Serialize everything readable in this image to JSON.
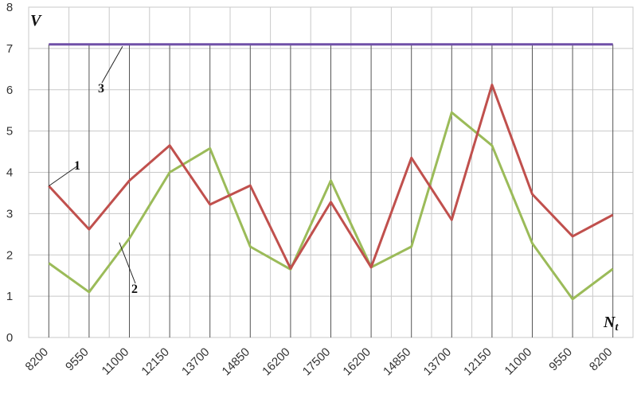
{
  "chart_data": {
    "type": "line",
    "title": "",
    "ylabel": "V",
    "xlabel": {
      "main": "N",
      "sub": "t"
    },
    "ylim": [
      0,
      8
    ],
    "yticks": [
      "0",
      "1",
      "2",
      "3",
      "4",
      "5",
      "6",
      "7",
      "8"
    ],
    "categories": [
      "8200",
      "9550",
      "11000",
      "12150",
      "13700",
      "14850",
      "16200",
      "17500",
      "16200",
      "14850",
      "13700",
      "12150",
      "11000",
      "9550",
      "8200"
    ],
    "grid": true,
    "series": [
      {
        "label": "1",
        "color": "#c0504d",
        "values": [
          3.67,
          2.62,
          3.8,
          4.65,
          3.22,
          3.68,
          1.67,
          3.28,
          1.7,
          4.35,
          2.85,
          6.12,
          3.47,
          2.45,
          2.97
        ]
      },
      {
        "label": "2",
        "color": "#9bbb59",
        "values": [
          1.8,
          1.1,
          2.4,
          4.0,
          4.58,
          2.2,
          1.65,
          3.8,
          1.7,
          2.2,
          5.45,
          4.65,
          2.28,
          0.93,
          1.66
        ]
      },
      {
        "label": "3",
        "color": "#7050a8",
        "values": [
          7.1,
          7.1,
          7.1,
          7.1,
          7.1,
          7.1,
          7.1,
          7.1,
          7.1,
          7.1,
          7.1,
          7.1,
          7.1,
          7.1,
          7.1
        ]
      }
    ]
  }
}
